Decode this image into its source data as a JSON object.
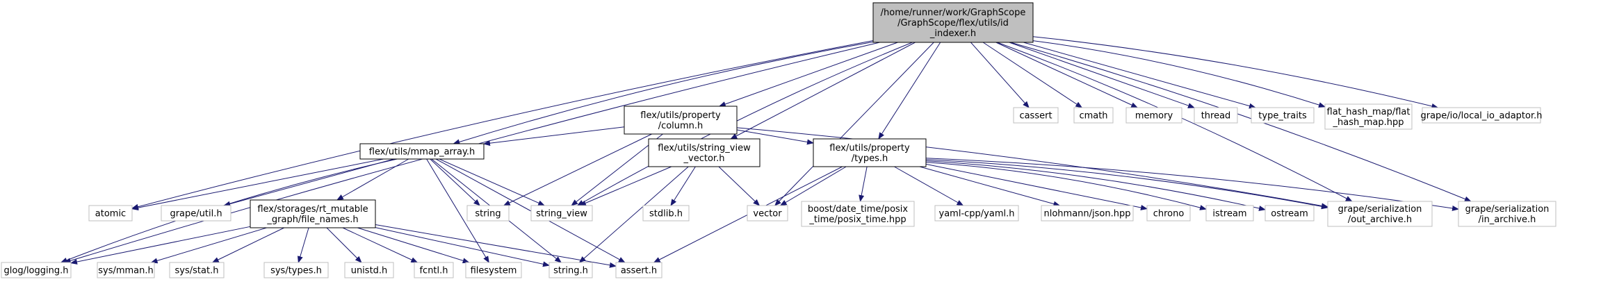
{
  "diagram": {
    "colors": {
      "edge": "#191970",
      "focus_fill": "#bfbfbf",
      "box_border": "#000000",
      "system_border": "#bfbfbf",
      "text": "#000000"
    },
    "nodes": [
      {
        "id": "root",
        "lines": [
          "/home/runner/work/GraphScope",
          "/GraphScope/flex/utils/id",
          "_indexer.h"
        ],
        "kind": "focus"
      },
      {
        "id": "column",
        "lines": [
          "flex/utils/property",
          "/column.h"
        ],
        "kind": "local"
      },
      {
        "id": "mmap",
        "lines": [
          "flex/utils/mmap_array.h"
        ],
        "kind": "local"
      },
      {
        "id": "svvec",
        "lines": [
          "flex/utils/string_view",
          "_vector.h"
        ],
        "kind": "local"
      },
      {
        "id": "types",
        "lines": [
          "flex/utils/property",
          "/types.h"
        ],
        "kind": "local"
      },
      {
        "id": "filenames",
        "lines": [
          "flex/storages/rt_mutable",
          "_graph/file_names.h"
        ],
        "kind": "local"
      },
      {
        "id": "cassert",
        "lines": [
          "cassert"
        ],
        "kind": "system"
      },
      {
        "id": "cmath",
        "lines": [
          "cmath"
        ],
        "kind": "system"
      },
      {
        "id": "memory",
        "lines": [
          "memory"
        ],
        "kind": "system"
      },
      {
        "id": "thread",
        "lines": [
          "thread"
        ],
        "kind": "system"
      },
      {
        "id": "type_traits",
        "lines": [
          "type_traits"
        ],
        "kind": "system"
      },
      {
        "id": "flat_hash_map",
        "lines": [
          "flat_hash_map/flat",
          "_hash_map.hpp"
        ],
        "kind": "system"
      },
      {
        "id": "local_io",
        "lines": [
          "grape/io/local_io_adaptor.h"
        ],
        "kind": "system"
      },
      {
        "id": "atomic",
        "lines": [
          "atomic"
        ],
        "kind": "system"
      },
      {
        "id": "grape_util",
        "lines": [
          "grape/util.h"
        ],
        "kind": "system"
      },
      {
        "id": "string",
        "lines": [
          "string"
        ],
        "kind": "system"
      },
      {
        "id": "string_view",
        "lines": [
          "string_view"
        ],
        "kind": "system"
      },
      {
        "id": "stdlib",
        "lines": [
          "stdlib.h"
        ],
        "kind": "system"
      },
      {
        "id": "vector",
        "lines": [
          "vector"
        ],
        "kind": "system"
      },
      {
        "id": "boost",
        "lines": [
          "boost/date_time/posix",
          "_time/posix_time.hpp"
        ],
        "kind": "system"
      },
      {
        "id": "yaml",
        "lines": [
          "yaml-cpp/yaml.h"
        ],
        "kind": "system"
      },
      {
        "id": "json",
        "lines": [
          "nlohmann/json.hpp"
        ],
        "kind": "system"
      },
      {
        "id": "chrono",
        "lines": [
          "chrono"
        ],
        "kind": "system"
      },
      {
        "id": "istream",
        "lines": [
          "istream"
        ],
        "kind": "system"
      },
      {
        "id": "ostream",
        "lines": [
          "ostream"
        ],
        "kind": "system"
      },
      {
        "id": "out_archive",
        "lines": [
          "grape/serialization",
          "/out_archive.h"
        ],
        "kind": "system"
      },
      {
        "id": "in_archive",
        "lines": [
          "grape/serialization",
          "/in_archive.h"
        ],
        "kind": "system"
      },
      {
        "id": "glog",
        "lines": [
          "glog/logging.h"
        ],
        "kind": "system"
      },
      {
        "id": "sys_mman",
        "lines": [
          "sys/mman.h"
        ],
        "kind": "system"
      },
      {
        "id": "sys_stat",
        "lines": [
          "sys/stat.h"
        ],
        "kind": "system"
      },
      {
        "id": "sys_types",
        "lines": [
          "sys/types.h"
        ],
        "kind": "system"
      },
      {
        "id": "unistd",
        "lines": [
          "unistd.h"
        ],
        "kind": "system"
      },
      {
        "id": "fcntl",
        "lines": [
          "fcntl.h"
        ],
        "kind": "system"
      },
      {
        "id": "filesystem",
        "lines": [
          "filesystem"
        ],
        "kind": "system"
      },
      {
        "id": "string_h",
        "lines": [
          "string.h"
        ],
        "kind": "system"
      },
      {
        "id": "assert_h",
        "lines": [
          "assert.h"
        ],
        "kind": "system"
      }
    ],
    "edges": [
      [
        "root",
        "column"
      ],
      [
        "root",
        "mmap"
      ],
      [
        "root",
        "svvec"
      ],
      [
        "root",
        "types"
      ],
      [
        "root",
        "cassert"
      ],
      [
        "root",
        "cmath"
      ],
      [
        "root",
        "memory"
      ],
      [
        "root",
        "thread"
      ],
      [
        "root",
        "type_traits"
      ],
      [
        "root",
        "flat_hash_map"
      ],
      [
        "root",
        "local_io"
      ],
      [
        "root",
        "atomic"
      ],
      [
        "root",
        "glog"
      ],
      [
        "root",
        "string_view"
      ],
      [
        "root",
        "vector"
      ],
      [
        "root",
        "out_archive"
      ],
      [
        "root",
        "in_archive"
      ],
      [
        "column",
        "mmap"
      ],
      [
        "column",
        "string"
      ],
      [
        "column",
        "string_view"
      ],
      [
        "column",
        "types"
      ],
      [
        "column",
        "out_archive"
      ],
      [
        "mmap",
        "atomic"
      ],
      [
        "mmap",
        "grape_util"
      ],
      [
        "mmap",
        "filenames"
      ],
      [
        "mmap",
        "string"
      ],
      [
        "mmap",
        "string_view"
      ],
      [
        "mmap",
        "glog"
      ],
      [
        "mmap",
        "filesystem"
      ],
      [
        "mmap",
        "string_h"
      ],
      [
        "mmap",
        "assert_h"
      ],
      [
        "svvec",
        "string_view"
      ],
      [
        "svvec",
        "stdlib"
      ],
      [
        "svvec",
        "vector"
      ],
      [
        "svvec",
        "string_h"
      ],
      [
        "types",
        "vector"
      ],
      [
        "types",
        "boost"
      ],
      [
        "types",
        "yaml"
      ],
      [
        "types",
        "json"
      ],
      [
        "types",
        "chrono"
      ],
      [
        "types",
        "istream"
      ],
      [
        "types",
        "ostream"
      ],
      [
        "types",
        "out_archive"
      ],
      [
        "types",
        "in_archive"
      ],
      [
        "types",
        "assert_h"
      ],
      [
        "filenames",
        "glog"
      ],
      [
        "filenames",
        "sys_mman"
      ],
      [
        "filenames",
        "sys_stat"
      ],
      [
        "filenames",
        "sys_types"
      ],
      [
        "filenames",
        "unistd"
      ],
      [
        "filenames",
        "fcntl"
      ],
      [
        "filenames",
        "filesystem"
      ],
      [
        "filenames",
        "string_h"
      ],
      [
        "filenames",
        "assert_h"
      ]
    ]
  }
}
